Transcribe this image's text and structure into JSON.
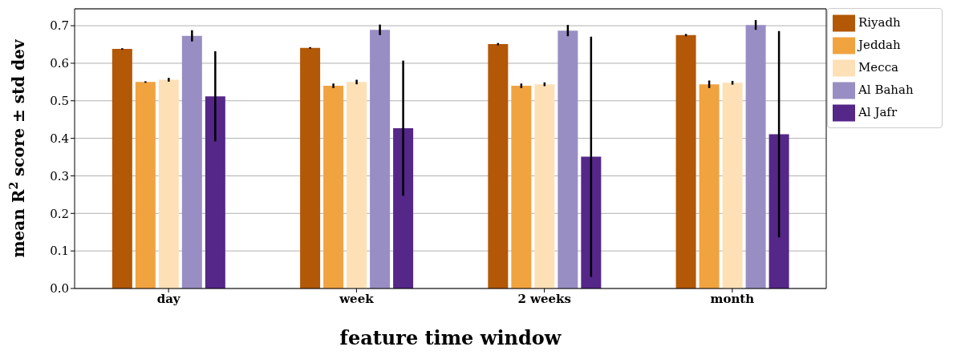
{
  "chart_data": {
    "type": "bar",
    "xlabel": "feature time window",
    "ylabel": "mean R$^{2}$ score ± std dev",
    "categories": [
      "day",
      "week",
      "2 weeks",
      "month"
    ],
    "series": [
      {
        "name": "Riyadh",
        "color": "#b35806",
        "values": [
          0.638,
          0.641,
          0.651,
          0.675
        ],
        "errors": [
          0.002,
          0.002,
          0.003,
          0.003
        ]
      },
      {
        "name": "Jeddah",
        "color": "#f1a340",
        "values": [
          0.55,
          0.54,
          0.54,
          0.544
        ],
        "errors": [
          0.002,
          0.006,
          0.006,
          0.01
        ]
      },
      {
        "name": "Mecca",
        "color": "#fee0b6",
        "values": [
          0.556,
          0.55,
          0.544,
          0.548
        ],
        "errors": [
          0.005,
          0.006,
          0.005,
          0.005
        ]
      },
      {
        "name": "Al Bahah",
        "color": "#998ec3",
        "values": [
          0.673,
          0.689,
          0.687,
          0.702
        ],
        "errors": [
          0.015,
          0.014,
          0.015,
          0.013
        ]
      },
      {
        "name": "Al Jafr",
        "color": "#542788",
        "values": [
          0.512,
          0.427,
          0.351,
          0.411
        ],
        "errors": [
          0.12,
          0.18,
          0.32,
          0.275
        ]
      }
    ],
    "ylim": [
      0,
      0.745
    ],
    "yticks": [
      {
        "value": 0,
        "label": "0.0"
      },
      {
        "value": 0.1,
        "label": "0.1"
      },
      {
        "value": 0.2,
        "label": "0.2"
      },
      {
        "value": 0.3,
        "label": "0.3"
      },
      {
        "value": 0.4,
        "label": "0.4"
      },
      {
        "value": 0.5,
        "label": "0.5"
      },
      {
        "value": 0.6,
        "label": "0.6"
      },
      {
        "value": 0.7,
        "label": "0.7"
      }
    ],
    "grid": "y",
    "legend": "top right"
  }
}
